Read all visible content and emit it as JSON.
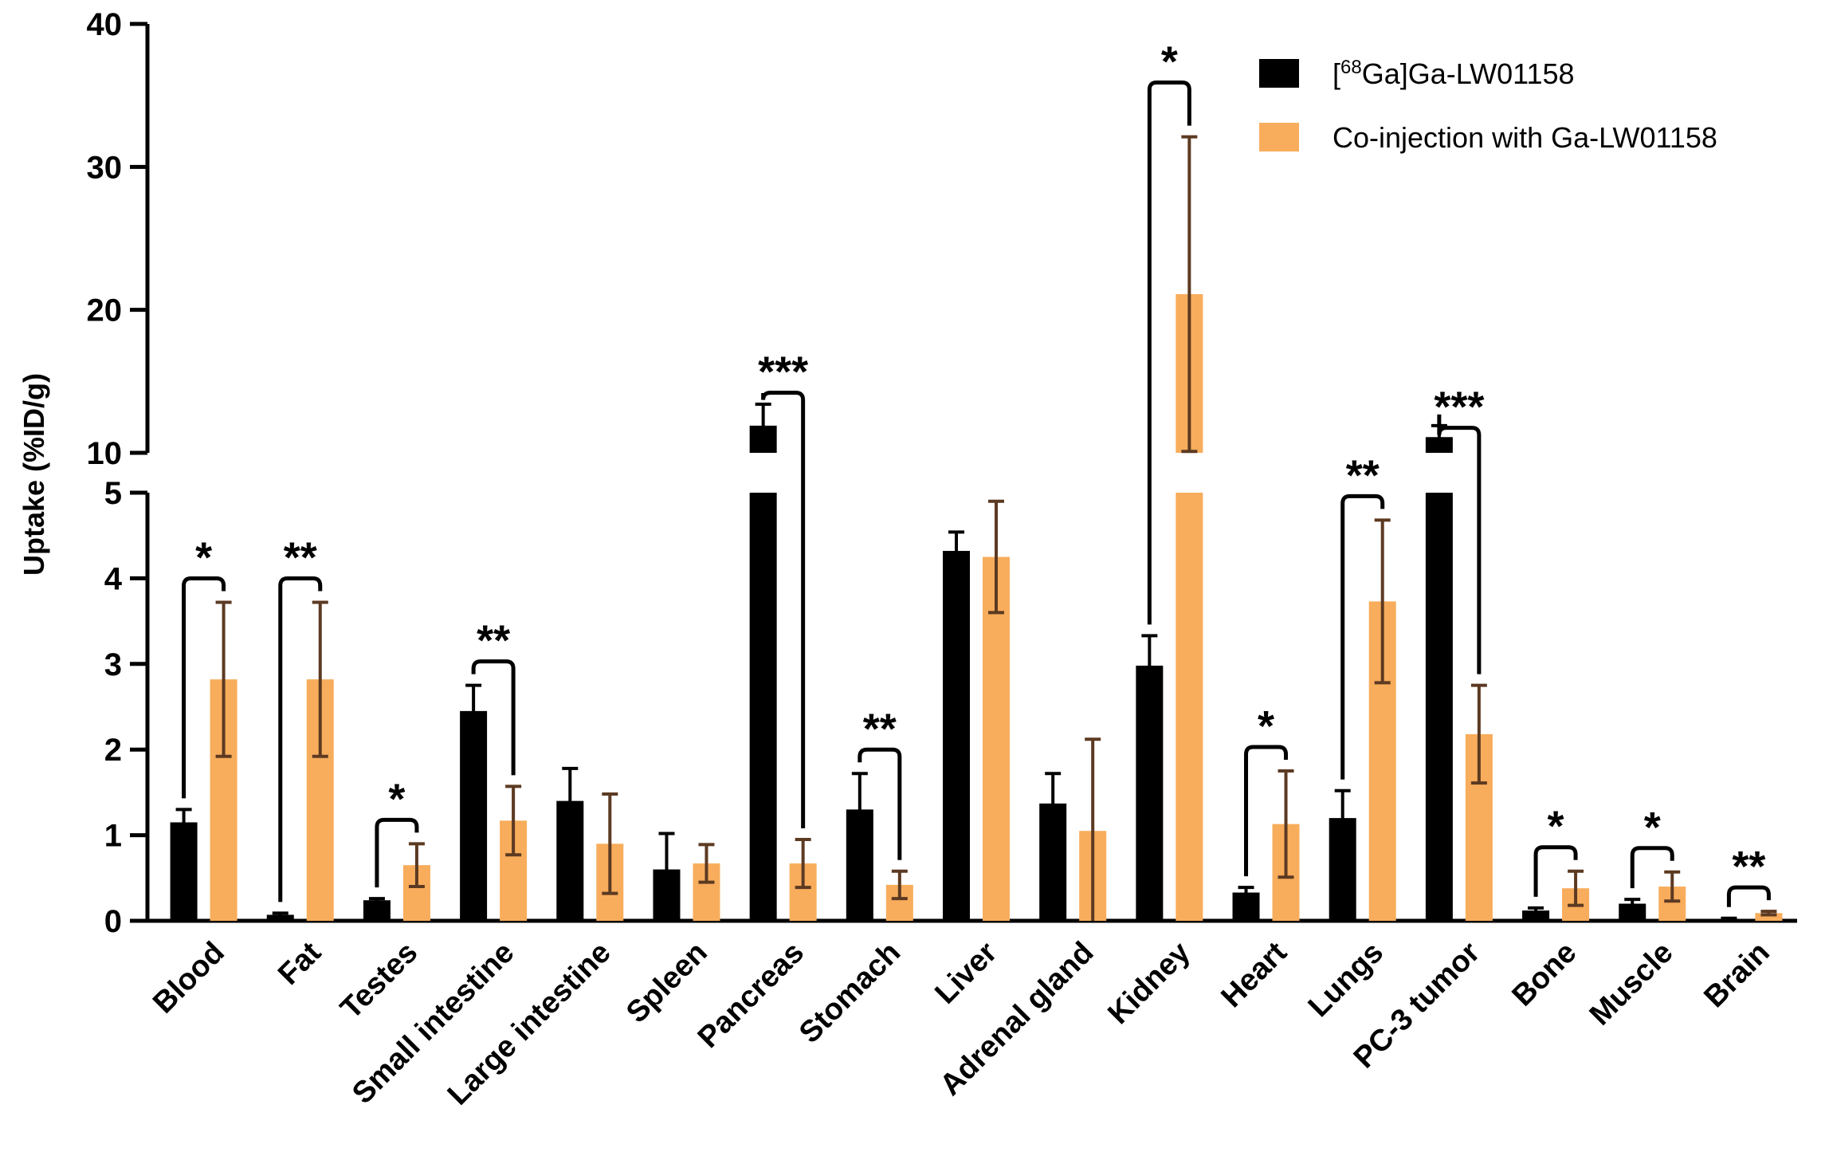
{
  "chart_data": {
    "type": "bar",
    "title": "",
    "xlabel": "",
    "ylabel": "Uptake (%ID/g)",
    "y_axis_break": {
      "lower_range": [
        0,
        5
      ],
      "upper_range": [
        10,
        40
      ]
    },
    "lower_ticks": [
      "0",
      "1",
      "2",
      "3",
      "4",
      "5"
    ],
    "upper_ticks": [
      "10",
      "20",
      "30",
      "40"
    ],
    "categories": [
      "Blood",
      "Fat",
      "Testes",
      "Small intestine",
      "Large intestine",
      "Spleen",
      "Pancreas",
      "Stomach",
      "Liver",
      "Adrenal gland",
      "Kidney",
      "Heart",
      "Lungs",
      "PC-3 tumor",
      "Bone",
      "Muscle",
      "Brain"
    ],
    "series": [
      {
        "name": "[68Ga]Ga-LW01158",
        "legend_sup": "68",
        "legend_pre": "[",
        "legend_post": "Ga]Ga-LW01158",
        "color": "#000000",
        "errcolor": "#000000",
        "values": [
          1.15,
          0.07,
          0.24,
          2.45,
          1.4,
          0.6,
          11.9,
          1.3,
          4.32,
          1.37,
          2.98,
          0.33,
          1.2,
          11.1,
          0.12,
          0.2,
          0.02
        ],
        "errors": [
          0.15,
          0.02,
          0.02,
          0.3,
          0.38,
          0.42,
          1.5,
          0.42,
          0.22,
          0.35,
          0.35,
          0.06,
          0.32,
          0.8,
          0.03,
          0.05,
          0.01
        ]
      },
      {
        "name": "Co-injection with Ga-LW01158",
        "color": "#F8AD5C",
        "errcolor": "#5C3A22",
        "values": [
          2.82,
          2.82,
          0.65,
          1.17,
          0.9,
          0.67,
          0.67,
          0.42,
          4.25,
          1.05,
          21.1,
          1.13,
          3.73,
          2.18,
          0.38,
          0.4,
          0.09
        ],
        "errors": [
          0.9,
          0.9,
          0.25,
          0.4,
          0.58,
          0.22,
          0.28,
          0.16,
          0.65,
          1.07,
          11.0,
          0.62,
          0.95,
          0.57,
          0.2,
          0.17,
          0.02
        ]
      }
    ],
    "significance": [
      {
        "category": "Blood",
        "label": "*"
      },
      {
        "category": "Fat",
        "label": "**"
      },
      {
        "category": "Testes",
        "label": "*"
      },
      {
        "category": "Small intestine",
        "label": "**"
      },
      {
        "category": "Pancreas",
        "label": "***"
      },
      {
        "category": "Stomach",
        "label": "**"
      },
      {
        "category": "Kidney",
        "label": "*"
      },
      {
        "category": "Heart",
        "label": "*"
      },
      {
        "category": "Lungs",
        "label": "**"
      },
      {
        "category": "PC-3 tumor",
        "label": "***"
      },
      {
        "category": "Bone",
        "label": "*"
      },
      {
        "category": "Muscle",
        "label": "*"
      },
      {
        "category": "Brain",
        "label": "**"
      }
    ],
    "legend_position": "top-right",
    "grid": false
  }
}
